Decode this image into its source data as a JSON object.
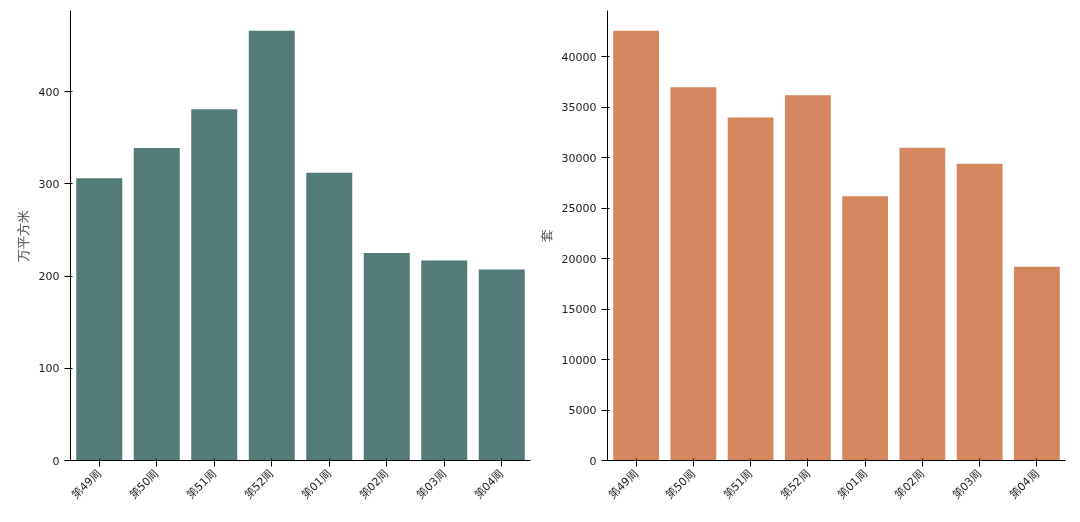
{
  "chart_data": [
    {
      "type": "bar",
      "ylabel": "万平方米",
      "categories": [
        "第49周",
        "第50周",
        "第51周",
        "第52周",
        "第01周",
        "第02周",
        "第03周",
        "第04周"
      ],
      "values": [
        306,
        339,
        381,
        466,
        312,
        225,
        217,
        207
      ],
      "color": "#537b78",
      "ylim": [
        0,
        488
      ],
      "yticks": [
        0,
        100,
        200,
        300,
        400
      ],
      "grid": false
    },
    {
      "type": "bar",
      "ylabel": "套",
      "categories": [
        "第49周",
        "第50周",
        "第51周",
        "第52周",
        "第01周",
        "第02周",
        "第03周",
        "第04周"
      ],
      "values": [
        42600,
        37000,
        34000,
        36200,
        26200,
        31000,
        29400,
        19200
      ],
      "color": "#d4875f",
      "ylim": [
        0,
        44600
      ],
      "yticks": [
        0,
        5000,
        10000,
        15000,
        20000,
        25000,
        30000,
        35000,
        40000
      ],
      "grid": false
    }
  ]
}
